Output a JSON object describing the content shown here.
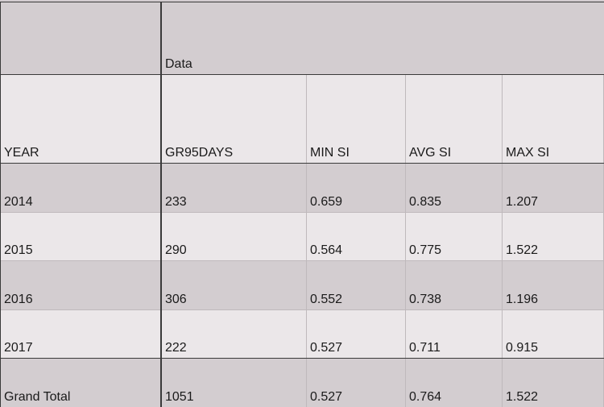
{
  "pivot": {
    "header_group_label": "Data",
    "columns": [
      "YEAR",
      "GR95DAYS",
      "MIN SI",
      "AVG SI",
      "MAX SI"
    ],
    "rows": [
      [
        "2014",
        "233",
        "0.659",
        "0.835",
        "1.207"
      ],
      [
        "2015",
        "290",
        "0.564",
        "0.775",
        "1.522"
      ],
      [
        "2016",
        "306",
        "0.552",
        "0.738",
        "1.196"
      ],
      [
        "2017",
        "222",
        "0.527",
        "0.711",
        "0.915"
      ]
    ],
    "total": [
      "Grand Total",
      "1051",
      "0.527",
      "0.764",
      "1.522"
    ]
  },
  "colors": {
    "band_dark": "#d3cdd0",
    "band_light": "#ebe7e9",
    "grid_strong": "#3a3a3a",
    "grid_faint": "#bfb9bc"
  }
}
